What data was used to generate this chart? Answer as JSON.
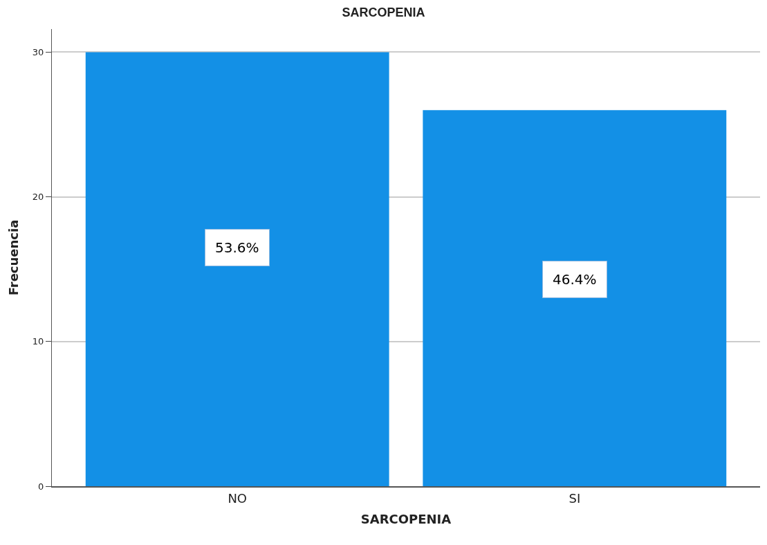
{
  "chart_data": {
    "type": "bar",
    "title": "SARCOPENIA",
    "xlabel": "SARCOPENIA",
    "ylabel": "Frecuencia",
    "categories": [
      "NO",
      "SI"
    ],
    "values": [
      30,
      26
    ],
    "annotations": [
      "53.6%",
      "46.4%"
    ],
    "color": "#1390e6",
    "ylim": [
      0,
      31.6
    ],
    "yticks": [
      0,
      10,
      20,
      30
    ],
    "grid": "y",
    "legend": false
  }
}
